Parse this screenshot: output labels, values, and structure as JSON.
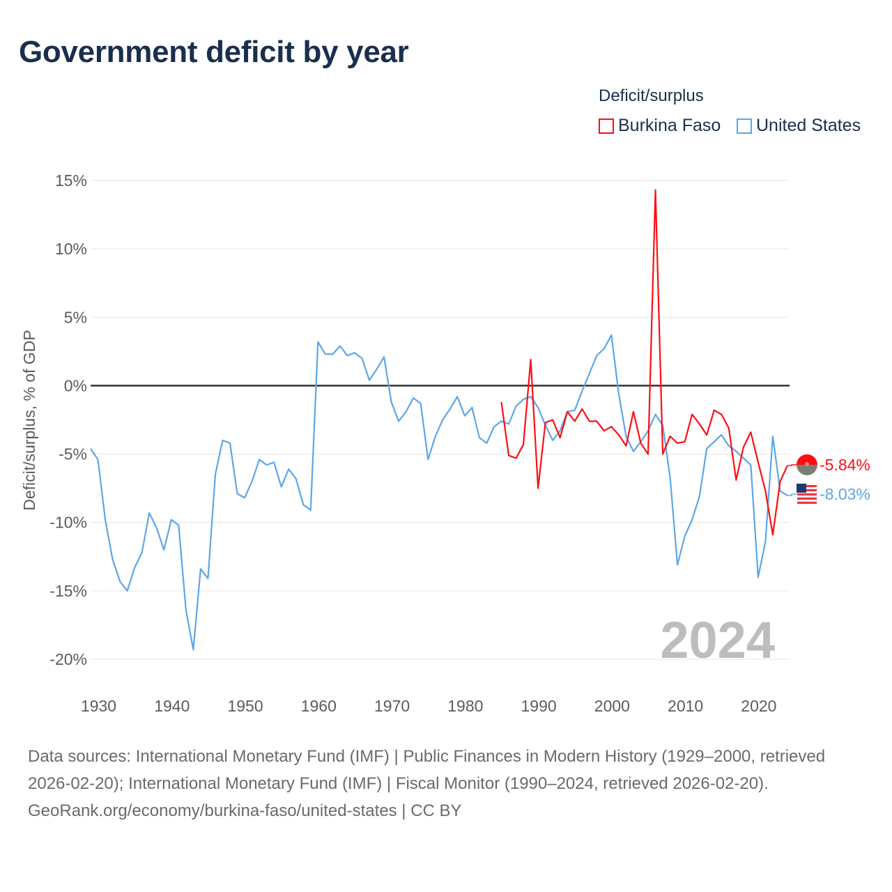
{
  "title": "Government deficit by year",
  "legend": {
    "title": "Deficit/surplus",
    "items": [
      {
        "label": "Burkina Faso",
        "color": "#ff0d12"
      },
      {
        "label": "United States",
        "color": "#5ca6e8"
      }
    ]
  },
  "chart_data": {
    "type": "line",
    "title": "Government deficit by year",
    "ylabel": "Deficit/surplus, % of GDP",
    "xlabel": "",
    "xlim": [
      1929,
      2024
    ],
    "ylim": [
      -20,
      15
    ],
    "yticks": [
      15,
      10,
      5,
      0,
      -5,
      -10,
      -15,
      -20
    ],
    "ytick_labels": [
      "15%",
      "10%",
      "5%",
      "0%",
      "-5%",
      "-10%",
      "-15%",
      "-20%"
    ],
    "xticks": [
      1930,
      1940,
      1950,
      1960,
      1970,
      1980,
      1990,
      2000,
      2010,
      2020
    ],
    "xtick_labels": [
      "1930",
      "1940",
      "1950",
      "1960",
      "1970",
      "1980",
      "1990",
      "2000",
      "2010",
      "2020"
    ],
    "grid": true,
    "legend_position": "top-right",
    "year_watermark": "2024",
    "series": [
      {
        "name": "Burkina Faso",
        "color": "#ff0d12",
        "end_label": "-5.84%",
        "x": [
          1985,
          1986,
          1987,
          1988,
          1989,
          1990,
          1991,
          1992,
          1993,
          1994,
          1995,
          1996,
          1997,
          1998,
          1999,
          2000,
          2001,
          2002,
          2003,
          2004,
          2005,
          2006,
          2007,
          2008,
          2009,
          2010,
          2011,
          2012,
          2013,
          2014,
          2015,
          2016,
          2017,
          2018,
          2019,
          2020,
          2021,
          2022,
          2023,
          2024
        ],
        "values": [
          -1.2,
          -5.1,
          -5.3,
          -4.3,
          1.9,
          -7.5,
          -2.7,
          -2.5,
          -3.8,
          -1.9,
          -2.6,
          -1.7,
          -2.6,
          -2.6,
          -3.3,
          -3.0,
          -3.6,
          -4.4,
          -1.9,
          -4.2,
          -5.0,
          14.3,
          -5.0,
          -3.7,
          -4.2,
          -4.1,
          -2.1,
          -2.8,
          -3.6,
          -1.8,
          -2.1,
          -3.1,
          -6.9,
          -4.5,
          -3.4,
          -5.6,
          -7.7,
          -10.9,
          -7.0,
          -5.84
        ]
      },
      {
        "name": "United States",
        "color": "#5ca6e8",
        "end_label": "-8.03%",
        "x": [
          1929,
          1930,
          1931,
          1932,
          1933,
          1934,
          1935,
          1936,
          1937,
          1938,
          1939,
          1940,
          1941,
          1942,
          1943,
          1944,
          1945,
          1946,
          1947,
          1948,
          1949,
          1950,
          1951,
          1952,
          1953,
          1954,
          1955,
          1956,
          1957,
          1958,
          1959,
          1960,
          1961,
          1962,
          1963,
          1964,
          1965,
          1966,
          1967,
          1968,
          1969,
          1970,
          1971,
          1972,
          1973,
          1974,
          1975,
          1976,
          1977,
          1978,
          1979,
          1980,
          1981,
          1982,
          1983,
          1984,
          1985,
          1986,
          1987,
          1988,
          1989,
          1990,
          1991,
          1992,
          1993,
          1994,
          1995,
          1996,
          1997,
          1998,
          1999,
          2000,
          2001,
          2002,
          2003,
          2004,
          2005,
          2006,
          2007,
          2008,
          2009,
          2010,
          2011,
          2012,
          2013,
          2014,
          2015,
          2016,
          2017,
          2018,
          2019,
          2020,
          2021,
          2022,
          2023,
          2024
        ],
        "values": [
          -4.6,
          -5.4,
          -9.8,
          -12.7,
          -14.3,
          -15.0,
          -13.3,
          -12.2,
          -9.3,
          -10.4,
          -12.0,
          -9.8,
          -10.2,
          -16.4,
          -19.3,
          -13.4,
          -14.1,
          -6.5,
          -4.0,
          -4.2,
          -7.9,
          -8.2,
          -7.0,
          -5.4,
          -5.8,
          -5.6,
          -7.4,
          -6.1,
          -6.8,
          -8.7,
          -9.1,
          3.2,
          2.3,
          2.3,
          2.9,
          2.2,
          2.4,
          2.0,
          0.4,
          1.2,
          2.1,
          -1.2,
          -2.6,
          -1.9,
          -0.9,
          -1.3,
          -5.4,
          -3.7,
          -2.5,
          -1.7,
          -0.8,
          -2.2,
          -1.6,
          -3.8,
          -4.2,
          -3.0,
          -2.6,
          -2.8,
          -1.5,
          -1.0,
          -0.8,
          -1.6,
          -2.9,
          -4.0,
          -3.3,
          -1.9,
          -1.8,
          -0.4,
          0.9,
          2.2,
          2.7,
          3.7,
          -0.6,
          -3.7,
          -4.8,
          -4.1,
          -3.3,
          -2.1,
          -2.9,
          -6.7,
          -13.1,
          -11.0,
          -9.8,
          -8.1,
          -4.6,
          -4.1,
          -3.6,
          -4.4,
          -4.8,
          -5.3,
          -5.8,
          -14.0,
          -11.4,
          -3.7,
          -7.7,
          -8.03
        ]
      }
    ]
  },
  "footer": {
    "sources": "Data sources: International Monetary Fund (IMF) | Public Finances in Modern History (1929–2000, retrieved 2026-02-20); International Monetary Fund (IMF) | Fiscal Monitor (1990–2024, retrieved 2026-02-20).",
    "credit": "GeoRank.org/economy/burkina-faso/united-states | CC BY"
  }
}
